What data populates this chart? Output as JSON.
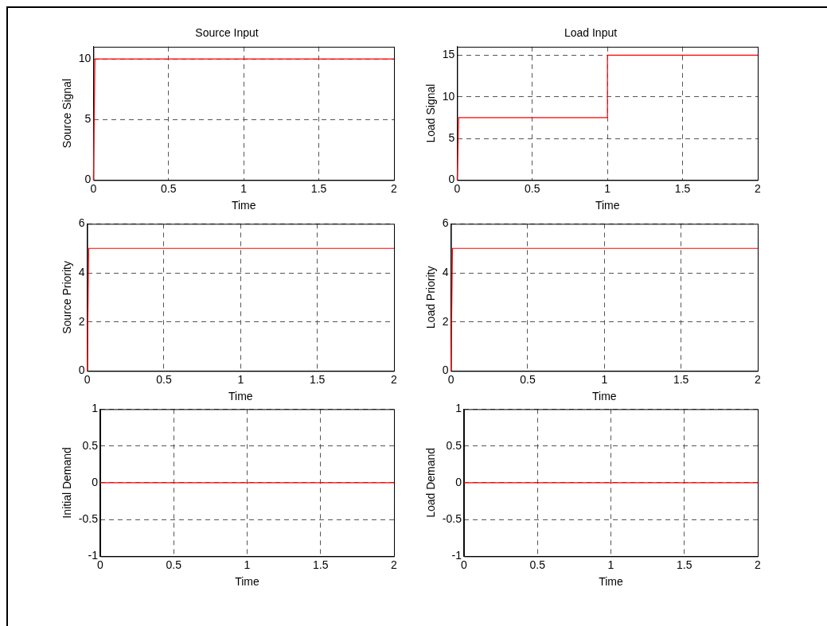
{
  "chart_data": [
    {
      "type": "line",
      "title": "Source Input",
      "xlabel": "Time",
      "ylabel": "Source Signal",
      "x": [
        0,
        0.01,
        2
      ],
      "series": [
        {
          "color": "#ff0000",
          "values": [
            0,
            10,
            10
          ]
        }
      ],
      "xlim": [
        0,
        2
      ],
      "xticks": [
        0,
        0.5,
        1,
        1.5,
        2
      ],
      "ylim": [
        0,
        11
      ],
      "yticks": [
        0,
        5,
        10
      ],
      "grid": true,
      "marker": "none",
      "line_style": "solid"
    },
    {
      "type": "line",
      "title": "Load Input",
      "xlabel": "Time",
      "ylabel": "Load Signal",
      "x": [
        0,
        0.01,
        1,
        1,
        2
      ],
      "series": [
        {
          "color": "#ff0000",
          "values": [
            0,
            7.5,
            7.5,
            15,
            15
          ]
        }
      ],
      "xlim": [
        0,
        2
      ],
      "xticks": [
        0,
        0.5,
        1,
        1.5,
        2
      ],
      "ylim": [
        0,
        16
      ],
      "yticks": [
        0,
        5,
        10,
        15
      ],
      "grid": true,
      "marker": "none",
      "line_style": "solid"
    },
    {
      "type": "line",
      "xlabel": "Time",
      "ylabel": "Source Priority",
      "x": [
        0,
        0.01,
        2
      ],
      "series": [
        {
          "color": "#ff0000",
          "values": [
            0,
            5,
            5
          ]
        }
      ],
      "xlim": [
        0,
        2
      ],
      "xticks": [
        0,
        0.5,
        1,
        1.5,
        2
      ],
      "ylim": [
        0,
        6
      ],
      "yticks": [
        0,
        2,
        4,
        6
      ],
      "grid": true,
      "marker": "none",
      "line_style": "solid"
    },
    {
      "type": "line",
      "xlabel": "Time",
      "ylabel": "Load Priority",
      "x": [
        0,
        0.01,
        2
      ],
      "series": [
        {
          "color": "#ff0000",
          "values": [
            0,
            5,
            5
          ]
        }
      ],
      "xlim": [
        0,
        2
      ],
      "xticks": [
        0,
        0.5,
        1,
        1.5,
        2
      ],
      "ylim": [
        0,
        6
      ],
      "yticks": [
        0,
        2,
        4,
        6
      ],
      "grid": true,
      "marker": "none",
      "line_style": "solid"
    },
    {
      "type": "line",
      "xlabel": "Time",
      "ylabel": "Initial Demand",
      "x": [
        0,
        2
      ],
      "series": [
        {
          "color": "#ff0000",
          "values": [
            0,
            0
          ]
        }
      ],
      "xlim": [
        0,
        2
      ],
      "xticks": [
        0,
        0.5,
        1,
        1.5,
        2
      ],
      "ylim": [
        -1,
        1
      ],
      "yticks": [
        -1,
        -0.5,
        0,
        0.5,
        1
      ],
      "grid": true,
      "marker": "none",
      "line_style": "solid"
    },
    {
      "type": "line",
      "xlabel": "Time",
      "ylabel": "Load Demand",
      "x": [
        0,
        2
      ],
      "series": [
        {
          "color": "#ff0000",
          "values": [
            0,
            0
          ]
        }
      ],
      "xlim": [
        0,
        2
      ],
      "xticks": [
        0,
        0.5,
        1,
        1.5,
        2
      ],
      "ylim": [
        -1,
        1
      ],
      "yticks": [
        -1,
        -0.5,
        0,
        0.5,
        1
      ],
      "grid": true,
      "marker": "none",
      "line_style": "solid"
    }
  ]
}
